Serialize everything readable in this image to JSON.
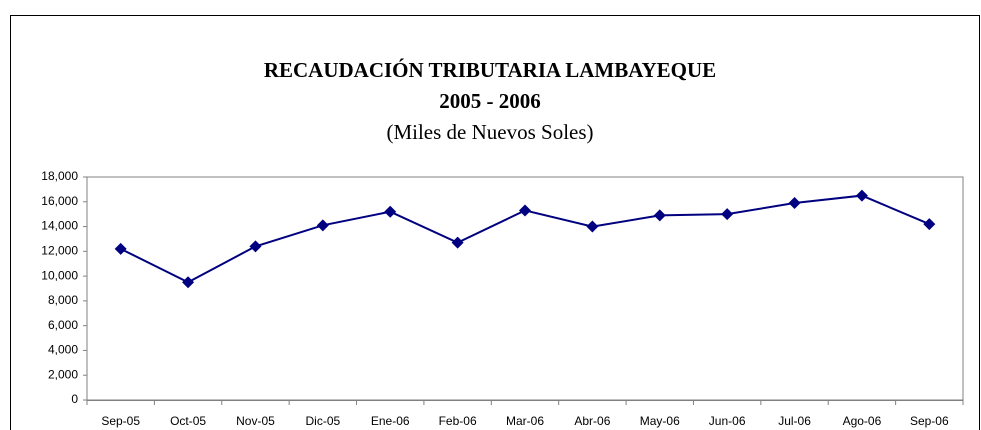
{
  "chart_data": {
    "type": "line",
    "title": "RECAUDACIÓN TRIBUTARIA LAMBAYEQUE",
    "subtitle": "2005 - 2006",
    "annotation": "(Miles de Nuevos Soles)",
    "categories": [
      "Sep-05",
      "Oct-05",
      "Nov-05",
      "Dic-05",
      "Ene-06",
      "Feb-06",
      "Mar-06",
      "Abr-06",
      "May-06",
      "Jun-06",
      "Jul-06",
      "Ago-06",
      "Sep-06"
    ],
    "values": [
      12200,
      9500,
      12400,
      14100,
      15200,
      12700,
      15300,
      14000,
      14900,
      15000,
      15900,
      16500,
      14200
    ],
    "color": "#000080",
    "ylim": [
      0,
      18000
    ],
    "yticks": [
      0,
      {
        "value": 2000,
        "label": "2,000"
      },
      {
        "value": 4000,
        "label": "4,000"
      },
      {
        "value": 6000,
        "label": "6,000"
      },
      {
        "value": 8000,
        "label": "8,000"
      },
      {
        "value": 10000,
        "label": "10,000"
      },
      {
        "value": 12000,
        "label": "12,000"
      },
      {
        "value": 14000,
        "label": "14,000"
      },
      {
        "value": 16000,
        "label": "16,000"
      },
      {
        "value": 18000,
        "label": "18,000"
      }
    ],
    "grid": false
  }
}
